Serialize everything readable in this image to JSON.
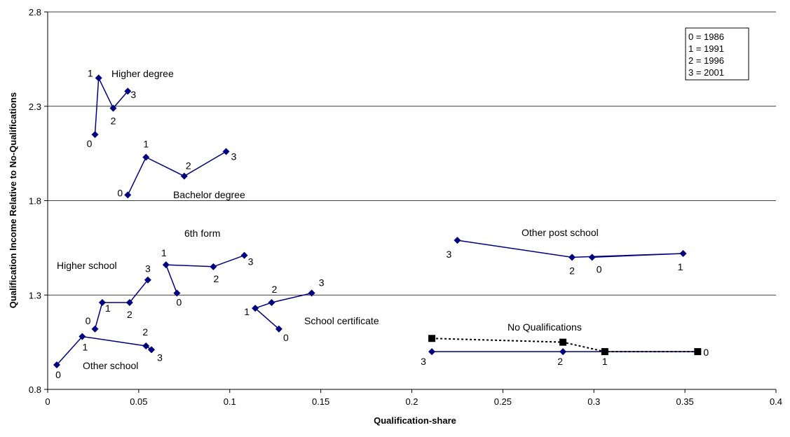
{
  "chart_data": {
    "type": "line",
    "title": "",
    "xlabel": "Qualification-share",
    "ylabel": "Qualification Income Relative to No-Qualifications",
    "xlim": [
      0,
      0.4
    ],
    "ylim": [
      0.8,
      2.8
    ],
    "x_ticks": [
      "0",
      "0.05",
      "0.1",
      "0.15",
      "0.2",
      "0.25",
      "0.3",
      "0.35",
      "0.4"
    ],
    "y_ticks": [
      "0.8",
      "1.3",
      "1.8",
      "2.3",
      "2.8"
    ],
    "grid": "horizontal",
    "legend_position": "top-right",
    "legend": [
      "0 = 1986",
      "1 = 1991",
      "2 = 1996",
      "3 = 2001"
    ],
    "series": [
      {
        "name": "Higher degree",
        "color": "#000080",
        "marker": "diamond",
        "dash": "solid",
        "points": [
          {
            "x": 0.026,
            "y": 2.15,
            "label": "0"
          },
          {
            "x": 0.028,
            "y": 2.45,
            "label": "1"
          },
          {
            "x": 0.036,
            "y": 2.29,
            "label": "2"
          },
          {
            "x": 0.044,
            "y": 2.38,
            "label": "3"
          }
        ]
      },
      {
        "name": "Bachelor degree",
        "color": "#000080",
        "marker": "diamond",
        "dash": "solid",
        "points": [
          {
            "x": 0.044,
            "y": 1.83,
            "label": "0"
          },
          {
            "x": 0.054,
            "y": 2.03,
            "label": "1"
          },
          {
            "x": 0.075,
            "y": 1.93,
            "label": "2"
          },
          {
            "x": 0.098,
            "y": 2.06,
            "label": "3"
          }
        ]
      },
      {
        "name": "6th form",
        "color": "#000080",
        "marker": "diamond",
        "dash": "solid",
        "points": [
          {
            "x": 0.071,
            "y": 1.31,
            "label": "0"
          },
          {
            "x": 0.065,
            "y": 1.46,
            "label": "1"
          },
          {
            "x": 0.091,
            "y": 1.45,
            "label": "2"
          },
          {
            "x": 0.108,
            "y": 1.51,
            "label": "3"
          }
        ]
      },
      {
        "name": "Higher school",
        "color": "#000080",
        "marker": "diamond",
        "dash": "solid",
        "points": [
          {
            "x": 0.026,
            "y": 1.12,
            "label": "0"
          },
          {
            "x": 0.03,
            "y": 1.26,
            "label": "1"
          },
          {
            "x": 0.045,
            "y": 1.26,
            "label": "2"
          },
          {
            "x": 0.055,
            "y": 1.38,
            "label": "3"
          }
        ]
      },
      {
        "name": "School certificate",
        "color": "#000080",
        "marker": "diamond",
        "dash": "solid",
        "points": [
          {
            "x": 0.127,
            "y": 1.12,
            "label": "0"
          },
          {
            "x": 0.114,
            "y": 1.23,
            "label": "1"
          },
          {
            "x": 0.123,
            "y": 1.26,
            "label": "2"
          },
          {
            "x": 0.145,
            "y": 1.31,
            "label": "3"
          }
        ]
      },
      {
        "name": "Other school",
        "color": "#000080",
        "marker": "diamond",
        "dash": "solid",
        "points": [
          {
            "x": 0.005,
            "y": 0.93,
            "label": "0"
          },
          {
            "x": 0.019,
            "y": 1.08,
            "label": "1"
          },
          {
            "x": 0.054,
            "y": 1.03,
            "label": "2"
          },
          {
            "x": 0.057,
            "y": 1.01,
            "label": "3"
          }
        ]
      },
      {
        "name": "Other post school",
        "color": "#000080",
        "marker": "diamond",
        "dash": "solid",
        "points": [
          {
            "x": 0.299,
            "y": 1.5,
            "label": "0"
          },
          {
            "x": 0.349,
            "y": 1.52,
            "label": "1"
          },
          {
            "x": 0.288,
            "y": 1.5,
            "label": "2"
          },
          {
            "x": 0.225,
            "y": 1.59,
            "label": "3"
          }
        ]
      },
      {
        "name": "No Qualifications",
        "color": "#000080",
        "marker": "diamond",
        "dash": "solid",
        "points": [
          {
            "x": 0.357,
            "y": 1.0,
            "label": "0"
          },
          {
            "x": 0.306,
            "y": 1.0,
            "label": "1"
          },
          {
            "x": 0.283,
            "y": 1.0,
            "label": "2"
          },
          {
            "x": 0.211,
            "y": 1.0,
            "label": "3"
          }
        ]
      },
      {
        "name": "No Qualifications",
        "color": "#000000",
        "marker": "square",
        "dash": "dotted",
        "points": [
          {
            "x": 0.211,
            "y": 1.07,
            "label": ""
          },
          {
            "x": 0.283,
            "y": 1.05,
            "label": ""
          },
          {
            "x": 0.306,
            "y": 1.0,
            "label": ""
          },
          {
            "x": 0.357,
            "y": 1.0,
            "label": ""
          }
        ]
      }
    ]
  }
}
